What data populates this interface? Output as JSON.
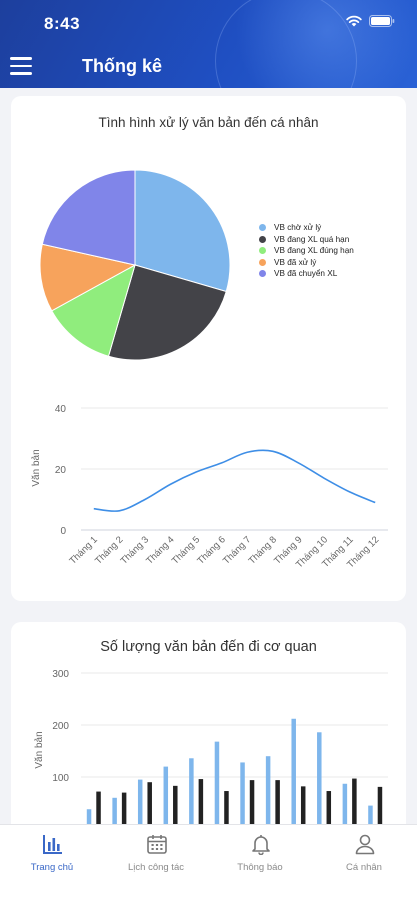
{
  "status": {
    "time": "8:43"
  },
  "header": {
    "title": "Thống kê"
  },
  "pie_card": {
    "title": "Tình hình xử lý văn bản đến cá nhân",
    "legend": [
      {
        "label": "VB chờ xử lý",
        "color": "#7eb6ec"
      },
      {
        "label": "VB đang XL quá hạn",
        "color": "#434348"
      },
      {
        "label": "VB đang XL đúng hạn",
        "color": "#90ed7d"
      },
      {
        "label": "VB đã xử lý",
        "color": "#f7a35c"
      },
      {
        "label": "VB đã chuyển XL",
        "color": "#8085e9"
      }
    ]
  },
  "line_card": {
    "ylabel": "Văn bản"
  },
  "bar_card": {
    "title": "Số lượng văn bản đến đi cơ quan",
    "ylabel": "Văn bản"
  },
  "chart_data": [
    {
      "type": "pie",
      "title": "Tình hình xử lý văn bản đến cá nhân",
      "labels": [
        "VB chờ xử lý",
        "VB đang XL quá hạn",
        "VB đang XL đúng hạn",
        "VB đã xử lý",
        "VB đã chuyển XL"
      ],
      "values": [
        29.5,
        25,
        12.5,
        11.5,
        21.5
      ],
      "colors": [
        "#7eb6ec",
        "#434348",
        "#90ed7d",
        "#f7a35c",
        "#8085e9"
      ],
      "legend": "right"
    },
    {
      "type": "line",
      "title": "",
      "ylabel": "Văn bản",
      "categories": [
        "Tháng 1",
        "Tháng 2",
        "Tháng 3",
        "Tháng 4",
        "Tháng 5",
        "Tháng 6",
        "Tháng 7",
        "Tháng 8",
        "Tháng 9",
        "Tháng 10",
        "Tháng 11",
        "Tháng 12"
      ],
      "values": [
        7,
        6.3,
        10,
        15,
        19,
        22,
        25.5,
        25.8,
        22,
        17,
        12.5,
        9
      ],
      "yticks": [
        0,
        20,
        40
      ],
      "ylim": [
        0,
        40
      ],
      "color": "#3e8ee6",
      "grid": true
    },
    {
      "type": "bar",
      "title": "Số lượng văn bản đến đi cơ quan",
      "ylabel": "Văn bản",
      "yticks": [
        100,
        200,
        300
      ],
      "ylim": [
        0,
        300
      ],
      "grid": true,
      "series": [
        {
          "color": "#7eb6ec",
          "values": [
            38,
            60,
            95,
            120,
            136,
            168,
            128,
            140,
            212,
            186,
            87,
            45
          ]
        },
        {
          "color": "#222222",
          "values": [
            72,
            70,
            90,
            83,
            96,
            73,
            94,
            94,
            82,
            73,
            97,
            81
          ]
        }
      ]
    }
  ],
  "tabbar": {
    "tabs": [
      {
        "label": "Trang chủ",
        "icon": "bar-chart-icon",
        "active": true
      },
      {
        "label": "Lịch công tác",
        "icon": "calendar-icon",
        "active": false
      },
      {
        "label": "Thông báo",
        "icon": "bell-icon",
        "active": false
      },
      {
        "label": "Cá nhân",
        "icon": "person-icon",
        "active": false
      }
    ]
  }
}
